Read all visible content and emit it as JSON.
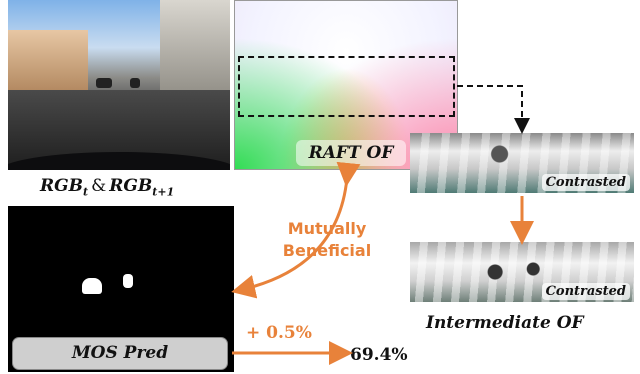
{
  "panels": {
    "rgb_caption": {
      "base1": "RGB",
      "sub1": "t",
      "amp": "&",
      "base2": "RGB",
      "sub2": "t+1"
    },
    "raft_label": "RAFT OF",
    "mos_label": "MOS Pred",
    "contrasted_label_1": "Contrasted",
    "contrasted_label_2": "Contrasted",
    "intermediate_caption": "Intermediate OF"
  },
  "annotations": {
    "mutually_line1": "Mutually",
    "mutually_line2": "Beneficial",
    "gain": "+ 0.5%",
    "result": "69.4%"
  },
  "colors": {
    "accent_orange": "#e8823a",
    "dashed": "#111111"
  }
}
